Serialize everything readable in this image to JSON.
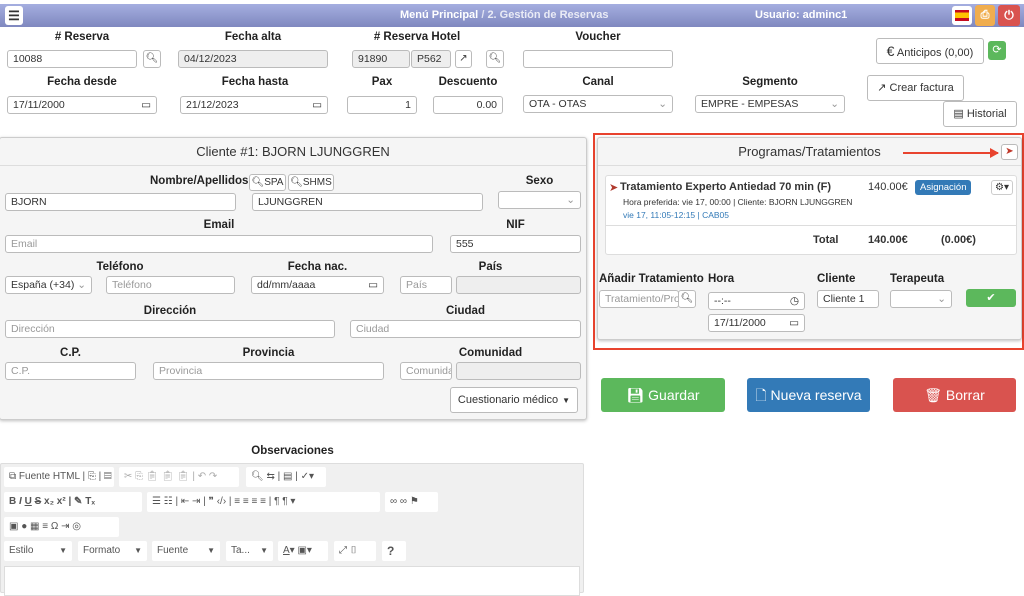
{
  "topbar": {
    "breadcrumb_main": "Menú Principal",
    "separator": "/",
    "breadcrumb_current": "2. Gestión de Reservas",
    "user": "Usuario: adminc1",
    "colors": {
      "print": "#f0ad4e",
      "power": "#d9534f"
    }
  },
  "reserva": {
    "numero_label": "# Reserva",
    "numero": "10088",
    "fecha_alta_label": "Fecha alta",
    "fecha_alta": "04/12/2023",
    "hotel_label": "# Reserva Hotel",
    "hotel_num": "91890",
    "hotel_code": "P562",
    "voucher_label": "Voucher",
    "voucher": "",
    "fecha_desde_label": "Fecha desde",
    "fecha_desde": "17/11/2000",
    "fecha_hasta_label": "Fecha hasta",
    "fecha_hasta": "21/12/2023",
    "pax_label": "Pax",
    "pax": "1",
    "descuento_label": "Descuento",
    "descuento": "0.00",
    "canal_label": "Canal",
    "canal": "OTA - OTAS",
    "segmento_label": "Segmento",
    "segmento": "EMPRE - EMPESAS"
  },
  "actions": {
    "anticipos": "Anticipos (0,00)",
    "crear_factura": "Crear factura",
    "historial": "Historial"
  },
  "cliente": {
    "title": "Cliente #1: BJORN LJUNGGREN",
    "nombre_label": "Nombre/Apellidos",
    "spa": "SPA",
    "shms": "SHMS",
    "nombre": "BJORN",
    "apellidos": "LJUNGGREN",
    "sexo_label": "Sexo",
    "email_label": "Email",
    "email_ph": "Email",
    "nif_label": "NIF",
    "nif": "555",
    "telefono_label": "Teléfono",
    "prefijo": "España (+34)",
    "telefono_ph": "Teléfono",
    "fecha_nac_label": "Fecha nac.",
    "fecha_nac_ph": "dd/mm/aaaa",
    "pais_label": "País",
    "pais_ph": "País",
    "direccion_label": "Dirección",
    "direccion_ph": "Dirección",
    "ciudad_label": "Ciudad",
    "ciudad_ph": "Ciudad",
    "cp_label": "C.P.",
    "cp_ph": "C.P.",
    "provincia_label": "Provincia",
    "provincia_ph": "Provincia",
    "comunidad_label": "Comunidad",
    "comunidad_ph": "Comunidad",
    "cuestionario": "Cuestionario médico"
  },
  "programas": {
    "title": "Programas/Tratamientos",
    "item": {
      "name": "Tratamiento Experto Antiedad 70 min (F)",
      "price": "140.00€",
      "badge": "Asignación",
      "detail": "Hora preferida: vie 17, 00:00 | Cliente: BJORN LJUNGGREN",
      "schedule": "vie 17, 11:05-12:15 | CAB05"
    },
    "total_label": "Total",
    "total": "140.00€",
    "total_paid": "(0.00€)",
    "add_label": "Añadir Tratamiento",
    "add_ph": "Tratamiento/Pro",
    "hora_label": "Hora",
    "hora": "--:--",
    "fecha": "17/11/2000",
    "cliente_label": "Cliente",
    "cliente": "Cliente 1",
    "terapeuta_label": "Terapeuta",
    "highlight_color": "#e8432e"
  },
  "buttons": {
    "guardar": "Guardar",
    "nueva": "Nueva reserva",
    "borrar": "Borrar"
  },
  "observaciones": {
    "label": "Observaciones",
    "fuente_html": "Fuente HTML",
    "estilo": "Estilo",
    "formato": "Formato",
    "fuente": "Fuente",
    "tamano": "Ta...",
    "help": "?"
  }
}
